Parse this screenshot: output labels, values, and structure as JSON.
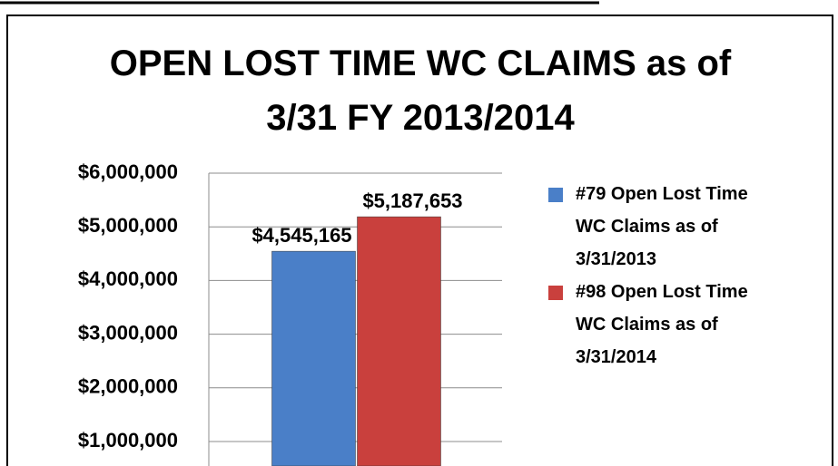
{
  "chart_data": {
    "type": "bar",
    "title": "OPEN LOST TIME WC CLAIMS as of 3/31 FY 2013/2014",
    "categories": [
      null
    ],
    "series": [
      {
        "name": "#79 Open Lost Time WC Claims as of 3/31/2013",
        "color": "#4a7fc8",
        "values": [
          4545165
        ],
        "value_labels": [
          "$4,545,165"
        ]
      },
      {
        "name": "#98 Open Lost Time WC Claims as of 3/31/2014",
        "color": "#c9403d",
        "values": [
          5187653
        ],
        "value_labels": [
          "$5,187,653"
        ]
      }
    ],
    "ylim": [
      1000000,
      6000000
    ],
    "yticks": [
      {
        "value": 1000000,
        "label": "$1,000,000"
      },
      {
        "value": 2000000,
        "label": "$2,000,000"
      },
      {
        "value": 3000000,
        "label": "$3,000,000"
      },
      {
        "value": 4000000,
        "label": "$4,000,000"
      },
      {
        "value": 5000000,
        "label": "$5,000,000"
      },
      {
        "value": 6000000,
        "label": "$6,000,000"
      }
    ],
    "grid": true,
    "legend": "right"
  }
}
